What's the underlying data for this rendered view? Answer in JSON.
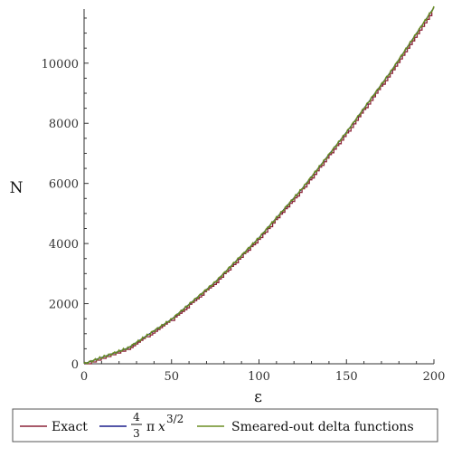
{
  "chart_data": {
    "type": "line",
    "xlabel": "ε",
    "ylabel": "N",
    "xlim": [
      0,
      200
    ],
    "ylim": [
      0,
      11800
    ],
    "x_ticks": [
      0,
      50,
      100,
      150,
      200
    ],
    "x_tick_labels": [
      "0",
      "50",
      "100",
      "150",
      "200"
    ],
    "y_ticks": [
      0,
      2000,
      4000,
      6000,
      8000,
      10000
    ],
    "y_tick_labels": [
      "0",
      "2000",
      "4000",
      "6000",
      "8000",
      "10000"
    ],
    "grid": false,
    "legend_position": "bottom",
    "series": [
      {
        "name": "Exact",
        "color": "#8b2338",
        "style": "staircase",
        "x": [
          0,
          25,
          50,
          75,
          100,
          125,
          150,
          175,
          200
        ],
        "values": [
          0,
          520,
          1480,
          2720,
          4190,
          5850,
          7700,
          9690,
          11850
        ]
      },
      {
        "name": "formula",
        "color": "#1c1f8c",
        "style": "smooth",
        "x": [
          0,
          25,
          50,
          75,
          100,
          125,
          150,
          175,
          200
        ],
        "values": [
          0,
          520,
          1480,
          2720,
          4190,
          5850,
          7700,
          9690,
          11850
        ]
      },
      {
        "name": "Smeared-out delta functions",
        "color": "#6b8e23",
        "style": "wiggly",
        "x": [
          0,
          25,
          50,
          75,
          100,
          125,
          150,
          175,
          200
        ],
        "values": [
          0,
          520,
          1480,
          2720,
          4190,
          5850,
          7700,
          9690,
          11850
        ]
      }
    ],
    "legend": {
      "exact_label": "Exact",
      "formula_numerator": "4",
      "formula_denominator": "3",
      "formula_pi": "π",
      "formula_var": "x",
      "formula_exp": "3/2",
      "smeared_label": "Smeared-out delta functions"
    }
  }
}
